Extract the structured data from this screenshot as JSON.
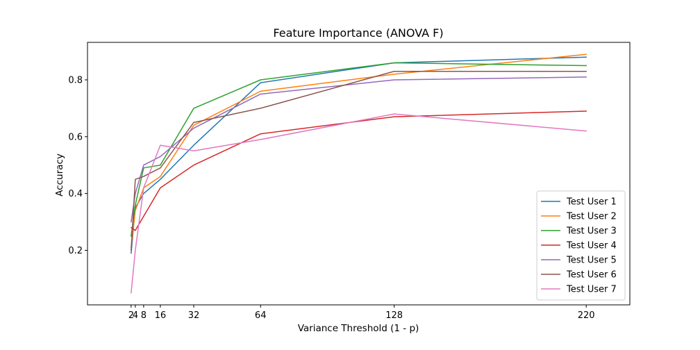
{
  "chart_data": {
    "type": "line",
    "title": "Feature Importance (ANOVA F)",
    "xlabel": "Variance Threshold (1 - p)",
    "ylabel": "Accuracy",
    "x": [
      2,
      4,
      8,
      16,
      32,
      64,
      128,
      220
    ],
    "xticks": [
      2,
      4,
      8,
      16,
      32,
      64,
      128,
      220
    ],
    "xlim": [
      -18.9,
      240.9
    ],
    "yticks": [
      0.2,
      0.4,
      0.6,
      0.8
    ],
    "ytick_labels": [
      "0.2",
      "0.4",
      "0.6",
      "0.8"
    ],
    "ylim": [
      0.008,
      0.932
    ],
    "grid": false,
    "legend_position": "lower-right",
    "series": [
      {
        "name": "Test User 1",
        "color": "#1f77b4",
        "values": [
          0.19,
          0.35,
          0.4,
          0.45,
          0.57,
          0.79,
          0.86,
          0.88
        ]
      },
      {
        "name": "Test User 2",
        "color": "#ff7f0e",
        "values": [
          0.21,
          0.34,
          0.42,
          0.46,
          0.64,
          0.76,
          0.82,
          0.89
        ]
      },
      {
        "name": "Test User 3",
        "color": "#2ca02c",
        "values": [
          0.25,
          0.36,
          0.49,
          0.5,
          0.7,
          0.8,
          0.86,
          0.85
        ]
      },
      {
        "name": "Test User 4",
        "color": "#d62728",
        "values": [
          0.28,
          0.27,
          0.32,
          0.42,
          0.5,
          0.61,
          0.67,
          0.69
        ]
      },
      {
        "name": "Test User 5",
        "color": "#9467bd",
        "values": [
          0.3,
          0.4,
          0.5,
          0.53,
          0.63,
          0.75,
          0.8,
          0.81
        ]
      },
      {
        "name": "Test User 6",
        "color": "#8c564b",
        "values": [
          0.2,
          0.45,
          0.46,
          0.49,
          0.65,
          0.7,
          0.83,
          0.83
        ]
      },
      {
        "name": "Test User 7",
        "color": "#e377c2",
        "values": [
          0.05,
          0.2,
          0.42,
          0.57,
          0.55,
          0.59,
          0.68,
          0.62
        ]
      }
    ]
  }
}
